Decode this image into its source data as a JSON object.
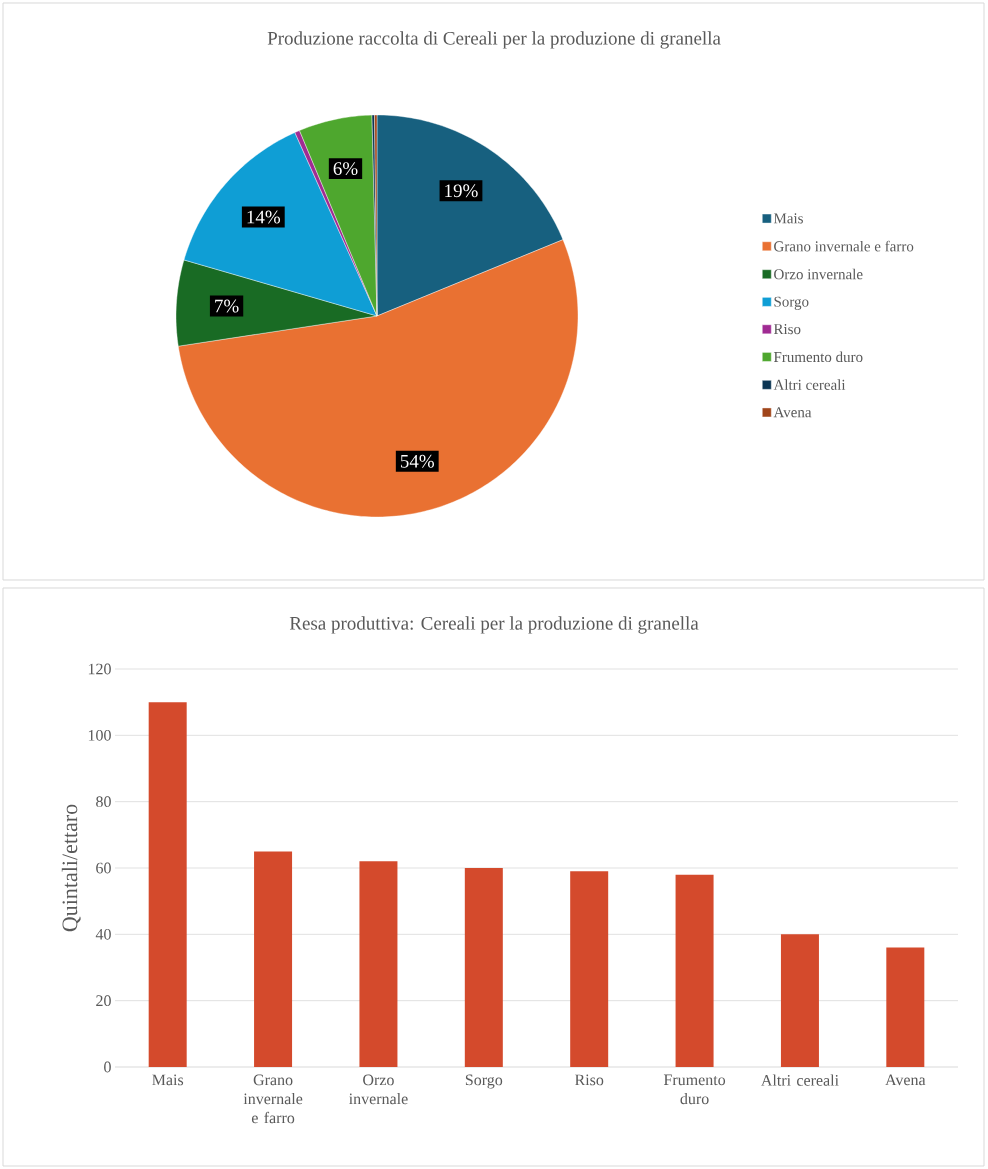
{
  "chart_data": [
    {
      "type": "pie",
      "title": "Produzione raccolta di Cereali per la produzione di granella",
      "categories": [
        "Mais",
        "Grano invernale e farro",
        "Orzo invernale",
        "Sorgo",
        "Riso",
        "Frumento duro",
        "Altri cereali",
        "Avena"
      ],
      "values": [
        18.8,
        53.8,
        6.9,
        13.8,
        0.4,
        5.9,
        0.2,
        0.2
      ],
      "colors": [
        "#17607f",
        "#e97132",
        "#196b24",
        "#0f9ed5",
        "#a02b93",
        "#4ea72e",
        "#0b3553",
        "#a0451a"
      ],
      "value_labels": [
        "19%",
        "54%",
        "7%",
        "14%",
        null,
        "6%",
        null,
        null
      ],
      "legend": "right"
    },
    {
      "type": "bar",
      "title": "Resa produttiva: Cereali per la produzione di granella",
      "ylabel": "Quintali/ettaro",
      "categories": [
        "Mais",
        "Grano invernale e farro",
        "Orzo invernale",
        "Sorgo",
        "Riso",
        "Frumento duro",
        "Altri cereali",
        "Avena"
      ],
      "values": [
        110,
        65,
        62,
        60,
        59,
        58,
        40,
        36
      ],
      "color": "#d44a2c",
      "ylim": [
        0,
        120
      ],
      "yticks": [
        0,
        20,
        40,
        60,
        80,
        100,
        120
      ],
      "grid": "y"
    }
  ]
}
